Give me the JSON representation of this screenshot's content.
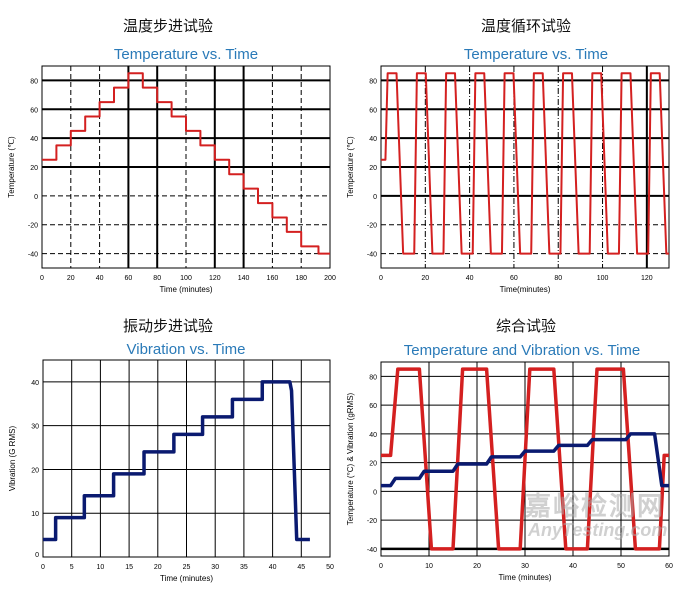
{
  "watermark": {
    "cn": "嘉峪检测网",
    "en": "AnyTesting.com"
  },
  "chart_data": [
    {
      "type": "line",
      "heading": "温度步进试验",
      "title": "Temperature vs. Time",
      "xlabel": "Time (minutes)",
      "ylabel": "Temperature (℃)",
      "xlim": [
        0,
        200
      ],
      "ylim": [
        -50,
        90
      ],
      "xticks": [
        0,
        20,
        40,
        60,
        80,
        100,
        120,
        140,
        160,
        180,
        200
      ],
      "yticks": [
        -40,
        -20,
        0,
        20,
        40,
        60,
        80
      ],
      "grid": true,
      "series": [
        {
          "color": "#d42020",
          "points": [
            [
              0,
              25
            ],
            [
              10,
              25
            ],
            [
              10,
              35
            ],
            [
              20,
              35
            ],
            [
              20,
              45
            ],
            [
              30,
              45
            ],
            [
              30,
              55
            ],
            [
              40,
              55
            ],
            [
              40,
              65
            ],
            [
              50,
              65
            ],
            [
              50,
              75
            ],
            [
              60,
              75
            ],
            [
              60,
              85
            ],
            [
              70,
              85
            ],
            [
              70,
              75
            ],
            [
              80,
              75
            ],
            [
              80,
              65
            ],
            [
              90,
              65
            ],
            [
              90,
              55
            ],
            [
              100,
              55
            ],
            [
              100,
              45
            ],
            [
              110,
              45
            ],
            [
              110,
              35
            ],
            [
              120,
              35
            ],
            [
              120,
              25
            ],
            [
              130,
              25
            ],
            [
              130,
              15
            ],
            [
              140,
              15
            ],
            [
              140,
              5
            ],
            [
              150,
              5
            ],
            [
              150,
              -5
            ],
            [
              160,
              -5
            ],
            [
              160,
              -15
            ],
            [
              170,
              -15
            ],
            [
              170,
              -25
            ],
            [
              180,
              -25
            ],
            [
              180,
              -35
            ],
            [
              192,
              -35
            ],
            [
              192,
              -40
            ],
            [
              200,
              -40
            ]
          ]
        }
      ]
    },
    {
      "type": "line",
      "heading": "温度循环试验",
      "title": "Temperature vs. Time",
      "xlabel": "Time(minutes)",
      "ylabel": "Temperature (℃)",
      "xlim": [
        0,
        130
      ],
      "ylim": [
        -50,
        90
      ],
      "xticks": [
        0,
        20,
        40,
        60,
        80,
        100,
        120
      ],
      "yticks": [
        -40,
        -20,
        0,
        20,
        40,
        60,
        80
      ],
      "grid": true,
      "series": [
        {
          "color": "#d42020",
          "points": [
            [
              0,
              25
            ],
            [
              2,
              25
            ],
            [
              3,
              85
            ],
            [
              7,
              85
            ],
            [
              10,
              -40
            ],
            [
              15,
              -40
            ],
            [
              16.2,
              85
            ],
            [
              20.2,
              85
            ],
            [
              23.2,
              -40
            ],
            [
              28.2,
              -40
            ],
            [
              29.4,
              85
            ],
            [
              33.4,
              85
            ],
            [
              36.4,
              -40
            ],
            [
              41.4,
              -40
            ],
            [
              42.6,
              85
            ],
            [
              46.6,
              85
            ],
            [
              49.6,
              -40
            ],
            [
              54.6,
              -40
            ],
            [
              55.8,
              85
            ],
            [
              59.8,
              85
            ],
            [
              62.8,
              -40
            ],
            [
              67.8,
              -40
            ],
            [
              69,
              85
            ],
            [
              73,
              85
            ],
            [
              76,
              -40
            ],
            [
              81,
              -40
            ],
            [
              82.2,
              85
            ],
            [
              86.2,
              85
            ],
            [
              89.2,
              -40
            ],
            [
              94.2,
              -40
            ],
            [
              95.4,
              85
            ],
            [
              99.4,
              85
            ],
            [
              102.4,
              -40
            ],
            [
              107.4,
              -40
            ],
            [
              108.6,
              85
            ],
            [
              112.6,
              85
            ],
            [
              115.6,
              -40
            ],
            [
              120.6,
              -40
            ],
            [
              121.8,
              85
            ],
            [
              125.8,
              85
            ],
            [
              128.8,
              -40
            ],
            [
              130,
              -40
            ]
          ]
        }
      ]
    },
    {
      "type": "line",
      "heading": "振动步进试验",
      "title": "Vibration vs. Time",
      "xlabel": "Time (minutes)",
      "ylabel": "Vibration (G RMS)",
      "xlim": [
        0,
        50
      ],
      "ylim": [
        0,
        45
      ],
      "xticks": [
        0,
        5,
        10,
        15,
        20,
        25,
        30,
        35,
        40,
        45,
        50
      ],
      "yticks": [
        0,
        10,
        20,
        30,
        40
      ],
      "grid": true,
      "series": [
        {
          "color": "#0a1a70",
          "points": [
            [
              0,
              4
            ],
            [
              2.2,
              4
            ],
            [
              2.2,
              9
            ],
            [
              7.2,
              9
            ],
            [
              7.2,
              14
            ],
            [
              12.3,
              14
            ],
            [
              12.3,
              19
            ],
            [
              17.6,
              19
            ],
            [
              17.6,
              24
            ],
            [
              22.8,
              24
            ],
            [
              22.8,
              28
            ],
            [
              27.8,
              28
            ],
            [
              27.8,
              32
            ],
            [
              33,
              32
            ],
            [
              33,
              36
            ],
            [
              38.2,
              36
            ],
            [
              38.2,
              40
            ],
            [
              43,
              40
            ],
            [
              43.3,
              38
            ],
            [
              44.2,
              4
            ],
            [
              46.5,
              4
            ]
          ]
        }
      ]
    },
    {
      "type": "line",
      "heading": "综合试验",
      "title": "Temperature and Vibration vs. Time",
      "xlabel": "Time (minutes)",
      "ylabel": "Temperature (°C) & Vibration (gRMS)",
      "xlim": [
        0,
        60
      ],
      "ylim": [
        -45,
        90
      ],
      "xticks": [
        0,
        10,
        20,
        30,
        40,
        50,
        60
      ],
      "yticks": [
        -40,
        -20,
        0,
        20,
        40,
        60,
        80
      ],
      "grid": true,
      "series": [
        {
          "color": "#d42020",
          "points": [
            [
              0,
              25
            ],
            [
              2,
              25
            ],
            [
              3.5,
              85
            ],
            [
              8,
              85
            ],
            [
              10.5,
              -40
            ],
            [
              15,
              -40
            ],
            [
              17,
              85
            ],
            [
              22,
              85
            ],
            [
              24.5,
              -40
            ],
            [
              29,
              -40
            ],
            [
              31,
              85
            ],
            [
              36,
              85
            ],
            [
              38.5,
              -40
            ],
            [
              43,
              -40
            ],
            [
              45,
              85
            ],
            [
              50.5,
              85
            ],
            [
              53,
              -40
            ],
            [
              58,
              -40
            ],
            [
              59,
              25
            ],
            [
              60,
              25
            ]
          ]
        },
        {
          "color": "#0a1a70",
          "points": [
            [
              0,
              4
            ],
            [
              2,
              4
            ],
            [
              3,
              9
            ],
            [
              8,
              9
            ],
            [
              9,
              14
            ],
            [
              15,
              14
            ],
            [
              16,
              19
            ],
            [
              22,
              19
            ],
            [
              23,
              24
            ],
            [
              29,
              24
            ],
            [
              30,
              28
            ],
            [
              36,
              28
            ],
            [
              37,
              32
            ],
            [
              43,
              32
            ],
            [
              44,
              36
            ],
            [
              51,
              36
            ],
            [
              52,
              40
            ],
            [
              57,
              40
            ],
            [
              58.5,
              4
            ],
            [
              60,
              4
            ]
          ]
        }
      ]
    }
  ]
}
